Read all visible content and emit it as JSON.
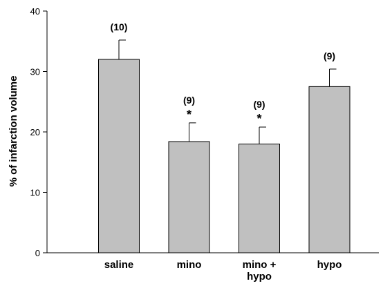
{
  "chart_data": {
    "type": "bar",
    "title": "",
    "xlabel": "",
    "ylabel": "% of infarction volume",
    "ylim": [
      0,
      40
    ],
    "yticks": [
      0,
      10,
      20,
      30,
      40
    ],
    "categories": [
      [
        "saline"
      ],
      [
        "mino"
      ],
      [
        "mino +",
        "hypo"
      ],
      [
        "hypo"
      ]
    ],
    "values": [
      32.0,
      18.4,
      18.0,
      27.5
    ],
    "errors": [
      3.2,
      3.1,
      2.8,
      2.9
    ],
    "n_labels": [
      "(10)",
      "(9)",
      "(9)",
      "(9)"
    ],
    "significance": [
      "",
      "*",
      "*",
      ""
    ],
    "bar_color": "#c0c0c0",
    "grid": false,
    "legend": "none"
  }
}
